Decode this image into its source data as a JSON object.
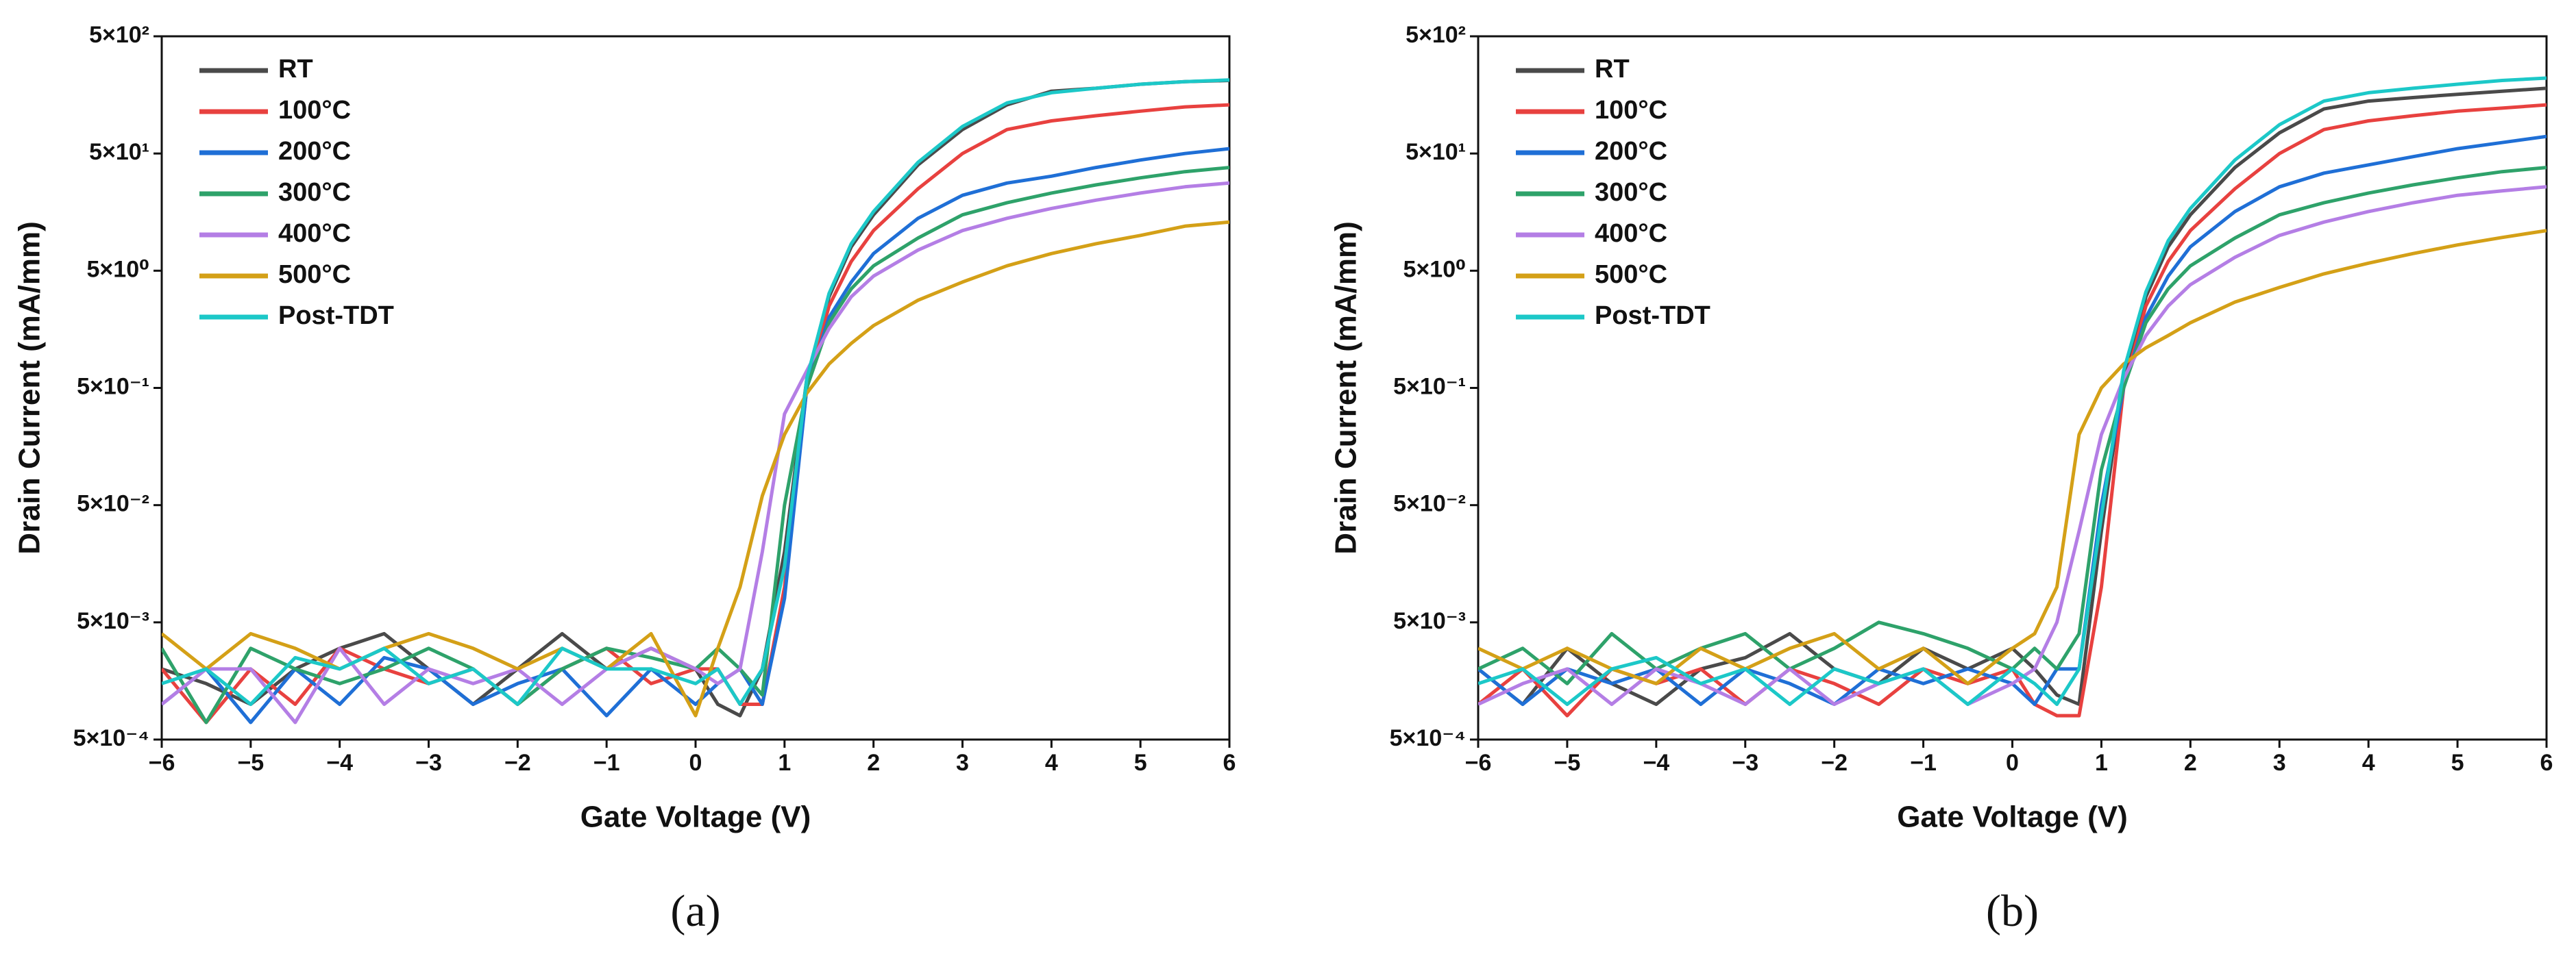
{
  "chart_data": [
    {
      "type": "line",
      "caption": "(a)",
      "x_label": "Gate Voltage (V)",
      "y_label": "Drain Current (mA/mm)",
      "log_y": true,
      "legend": "upper left",
      "xlim": [
        -6,
        6
      ],
      "xticks": [
        {
          "value": -6,
          "label": "−6"
        },
        {
          "value": -5,
          "label": "−5"
        },
        {
          "value": -4,
          "label": "−4"
        },
        {
          "value": -3,
          "label": "−3"
        },
        {
          "value": -2,
          "label": "−2"
        },
        {
          "value": -1,
          "label": "−1"
        },
        0,
        1,
        2,
        3,
        4,
        5,
        6
      ],
      "ylim": [
        0.0005,
        500
      ],
      "yticks": [
        {
          "value": 0.0005,
          "label": "5×10⁻⁴"
        },
        {
          "value": 0.005,
          "label": "5×10⁻³"
        },
        {
          "value": 0.05,
          "label": "5×10⁻²"
        },
        {
          "value": 0.5,
          "label": "5×10⁻¹"
        },
        {
          "value": 5,
          "label": "5×10⁰"
        },
        {
          "value": 50,
          "label": "5×10¹"
        },
        {
          "value": 500,
          "label": "5×10²"
        }
      ],
      "x": [
        -6,
        -5.5,
        -5,
        -4.5,
        -4,
        -3.5,
        -3,
        -2.5,
        -2,
        -1.5,
        -1,
        -0.5,
        0,
        0.25,
        0.5,
        0.75,
        1,
        1.25,
        1.5,
        1.75,
        2,
        2.5,
        3,
        3.5,
        4,
        4.5,
        5,
        5.5,
        6
      ],
      "series": [
        {
          "name": "RT",
          "color": "#4a4a4a",
          "values": [
            0.002,
            0.0015,
            0.001,
            0.002,
            0.003,
            0.004,
            0.002,
            0.001,
            0.002,
            0.004,
            0.002,
            0.003,
            0.002,
            0.001,
            0.0008,
            0.002,
            0.02,
            0.6,
            3,
            8,
            15,
            40,
            80,
            130,
            170,
            180,
            195,
            205,
            210
          ]
        },
        {
          "name": "100°C",
          "color": "#e8413f",
          "values": [
            0.002,
            0.0007,
            0.002,
            0.001,
            0.003,
            0.002,
            0.0015,
            0.002,
            0.001,
            0.002,
            0.003,
            0.0015,
            0.002,
            0.002,
            0.001,
            0.001,
            0.01,
            0.5,
            2.5,
            6,
            11,
            25,
            50,
            80,
            95,
            105,
            115,
            125,
            130
          ]
        },
        {
          "name": "200°C",
          "color": "#1f6fd6",
          "values": [
            0.001,
            0.002,
            0.0007,
            0.002,
            0.001,
            0.0025,
            0.002,
            0.001,
            0.0015,
            0.002,
            0.0008,
            0.002,
            0.001,
            0.0015,
            0.002,
            0.001,
            0.008,
            0.5,
            2,
            4,
            7,
            14,
            22,
            28,
            32,
            38,
            44,
            50,
            55
          ]
        },
        {
          "name": "300°C",
          "color": "#2ea26a",
          "values": [
            0.003,
            0.0007,
            0.003,
            0.002,
            0.0015,
            0.002,
            0.003,
            0.002,
            0.001,
            0.002,
            0.003,
            0.0025,
            0.002,
            0.003,
            0.002,
            0.0012,
            0.05,
            0.5,
            1.8,
            3.5,
            5.5,
            9.5,
            15,
            19,
            23,
            27,
            31,
            35,
            38
          ]
        },
        {
          "name": "400°C",
          "color": "#b47ee5",
          "values": [
            0.001,
            0.002,
            0.002,
            0.0007,
            0.003,
            0.001,
            0.002,
            0.0015,
            0.002,
            0.001,
            0.002,
            0.003,
            0.002,
            0.0015,
            0.002,
            0.02,
            0.3,
            0.7,
            1.6,
            3,
            4.5,
            7.5,
            11,
            14,
            17,
            20,
            23,
            26,
            28
          ]
        },
        {
          "name": "500°C",
          "color": "#d4a017",
          "values": [
            0.004,
            0.002,
            0.004,
            0.003,
            0.002,
            0.003,
            0.004,
            0.003,
            0.002,
            0.003,
            0.002,
            0.004,
            0.0008,
            0.003,
            0.01,
            0.06,
            0.2,
            0.45,
            0.8,
            1.2,
            1.7,
            2.8,
            4,
            5.5,
            7,
            8.5,
            10,
            12,
            13
          ]
        },
        {
          "name": "Post-TDT",
          "color": "#1cc8c8",
          "values": [
            0.0015,
            0.002,
            0.001,
            0.0025,
            0.002,
            0.003,
            0.0015,
            0.002,
            0.001,
            0.003,
            0.002,
            0.002,
            0.0015,
            0.002,
            0.001,
            0.002,
            0.015,
            0.6,
            3.2,
            8.5,
            16,
            42,
            85,
            135,
            165,
            180,
            195,
            205,
            212
          ]
        }
      ]
    },
    {
      "type": "line",
      "caption": "(b)",
      "x_label": "Gate Voltage (V)",
      "y_label": "Drain Current (mA/mm)",
      "log_y": true,
      "legend": "upper left",
      "xlim": [
        -6,
        6
      ],
      "xticks": [
        {
          "value": -6,
          "label": "−6"
        },
        {
          "value": -5,
          "label": "−5"
        },
        {
          "value": -4,
          "label": "−4"
        },
        {
          "value": -3,
          "label": "−3"
        },
        {
          "value": -2,
          "label": "−2"
        },
        {
          "value": -1,
          "label": "−1"
        },
        0,
        1,
        2,
        3,
        4,
        5,
        6
      ],
      "ylim": [
        0.0005,
        500
      ],
      "yticks": [
        {
          "value": 0.0005,
          "label": "5×10⁻⁴"
        },
        {
          "value": 0.005,
          "label": "5×10⁻³"
        },
        {
          "value": 0.05,
          "label": "5×10⁻²"
        },
        {
          "value": 0.5,
          "label": "5×10⁻¹"
        },
        {
          "value": 5,
          "label": "5×10⁰"
        },
        {
          "value": 50,
          "label": "5×10¹"
        },
        {
          "value": 500,
          "label": "5×10²"
        }
      ],
      "x": [
        -6,
        -5.5,
        -5,
        -4.5,
        -4,
        -3.5,
        -3,
        -2.5,
        -2,
        -1.5,
        -1,
        -0.5,
        0,
        0.25,
        0.5,
        0.75,
        1,
        1.25,
        1.5,
        1.75,
        2,
        2.5,
        3,
        3.5,
        4,
        4.5,
        5,
        5.5,
        6
      ],
      "series": [
        {
          "name": "RT",
          "color": "#4a4a4a",
          "values": [
            0.002,
            0.001,
            0.003,
            0.0015,
            0.001,
            0.002,
            0.0025,
            0.004,
            0.002,
            0.0015,
            0.003,
            0.002,
            0.003,
            0.002,
            0.0012,
            0.001,
            0.03,
            0.6,
            3,
            8,
            15,
            38,
            75,
            120,
            140,
            150,
            160,
            170,
            180
          ]
        },
        {
          "name": "100°C",
          "color": "#e8413f",
          "values": [
            0.001,
            0.002,
            0.0008,
            0.002,
            0.0015,
            0.002,
            0.001,
            0.002,
            0.0015,
            0.001,
            0.002,
            0.0015,
            0.002,
            0.001,
            0.0008,
            0.0008,
            0.01,
            0.5,
            2.5,
            6,
            11,
            25,
            50,
            80,
            95,
            105,
            115,
            122,
            130
          ]
        },
        {
          "name": "200°C",
          "color": "#1f6fd6",
          "values": [
            0.002,
            0.001,
            0.002,
            0.0015,
            0.002,
            0.001,
            0.002,
            0.0015,
            0.001,
            0.002,
            0.0015,
            0.002,
            0.0015,
            0.001,
            0.002,
            0.002,
            0.05,
            0.5,
            2,
            4.5,
            8,
            16,
            26,
            34,
            40,
            47,
            55,
            62,
            70
          ]
        },
        {
          "name": "300°C",
          "color": "#2ea26a",
          "values": [
            0.002,
            0.003,
            0.0015,
            0.004,
            0.002,
            0.003,
            0.004,
            0.002,
            0.003,
            0.005,
            0.004,
            0.003,
            0.002,
            0.003,
            0.002,
            0.004,
            0.1,
            0.5,
            1.8,
            3.5,
            5.5,
            9.5,
            15,
            19,
            23,
            27,
            31,
            35,
            38
          ]
        },
        {
          "name": "400°C",
          "color": "#b47ee5",
          "values": [
            0.001,
            0.0015,
            0.002,
            0.001,
            0.002,
            0.0015,
            0.001,
            0.002,
            0.001,
            0.0015,
            0.002,
            0.001,
            0.0015,
            0.002,
            0.005,
            0.03,
            0.2,
            0.6,
            1.4,
            2.5,
            3.8,
            6.5,
            10,
            13,
            16,
            19,
            22,
            24,
            26
          ]
        },
        {
          "name": "500°C",
          "color": "#d4a017",
          "values": [
            0.003,
            0.002,
            0.003,
            0.002,
            0.0015,
            0.003,
            0.002,
            0.003,
            0.004,
            0.002,
            0.003,
            0.0015,
            0.003,
            0.004,
            0.01,
            0.2,
            0.5,
            0.8,
            1.1,
            1.4,
            1.8,
            2.7,
            3.6,
            4.7,
            5.8,
            7,
            8.3,
            9.6,
            11
          ]
        },
        {
          "name": "Post-TDT",
          "color": "#1cc8c8",
          "values": [
            0.0015,
            0.002,
            0.001,
            0.002,
            0.0025,
            0.0015,
            0.002,
            0.001,
            0.002,
            0.0015,
            0.002,
            0.001,
            0.002,
            0.0015,
            0.001,
            0.002,
            0.04,
            0.7,
            3.3,
            9,
            17,
            44,
            88,
            140,
            165,
            180,
            195,
            210,
            220
          ]
        }
      ]
    }
  ]
}
